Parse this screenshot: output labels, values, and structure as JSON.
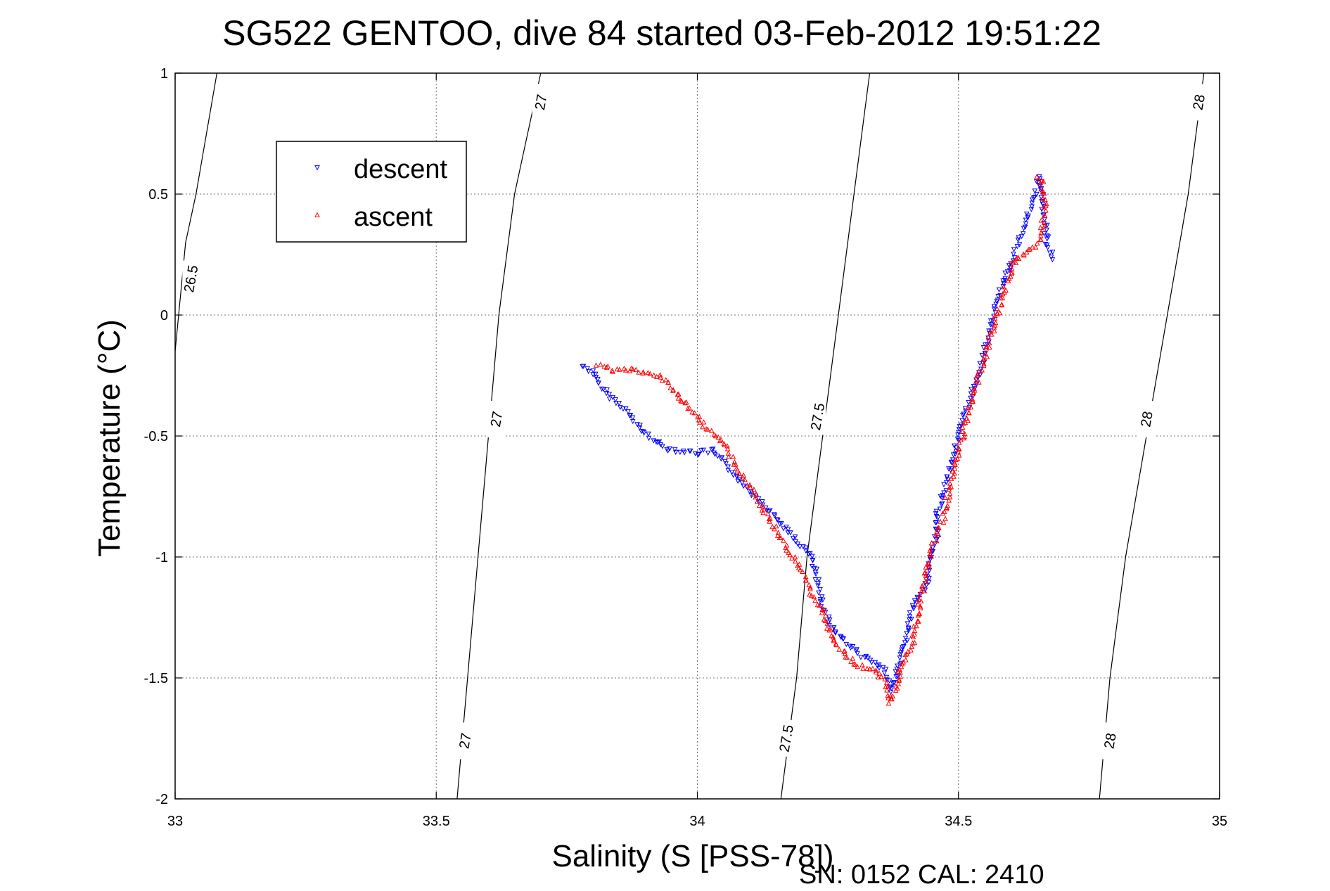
{
  "chart_data": {
    "type": "scatter",
    "title": "SG522 GENTOO, dive 84 started 03-Feb-2012 19:51:22",
    "xlabel": "Salinity (S [PSS-78])",
    "ylabel": "Temperature (°C)",
    "footer": "SN: 0152  CAL: 2410",
    "xlim": [
      33,
      35
    ],
    "ylim": [
      -2,
      1
    ],
    "x_ticks": [
      33,
      33.5,
      34,
      34.5,
      35
    ],
    "x_tick_labels": [
      "33",
      "33.5",
      "34",
      "34.5",
      "35"
    ],
    "y_ticks": [
      -2,
      -1.5,
      -1,
      -0.5,
      0,
      0.5,
      1
    ],
    "y_tick_labels": [
      "-2",
      "-1.5",
      "-1",
      "-0.5",
      "0",
      "0.5",
      "1"
    ],
    "grid": true,
    "legend": {
      "position": "top-left",
      "entries": [
        {
          "label": "descent",
          "color": "#0000ff",
          "marker": "triangle-down"
        },
        {
          "label": "ascent",
          "color": "#ff0000",
          "marker": "triangle-up"
        }
      ]
    },
    "contours": [
      {
        "level": "26.5",
        "points": [
          [
            33.08,
            1.0
          ],
          [
            33.04,
            0.5
          ],
          [
            33.02,
            0.3
          ],
          [
            33.0,
            -0.15
          ]
        ],
        "labels": [
          {
            "x": 33.03,
            "y": 0.15,
            "text": "26.5"
          }
        ]
      },
      {
        "level": "27",
        "points": [
          [
            33.7,
            1.0
          ],
          [
            33.65,
            0.5
          ],
          [
            33.62,
            0.0
          ],
          [
            33.6,
            -0.5
          ],
          [
            33.58,
            -1.0
          ],
          [
            33.56,
            -1.5
          ],
          [
            33.54,
            -2.0
          ]
        ],
        "labels": [
          {
            "x": 33.7,
            "y": 0.88,
            "text": "27"
          },
          {
            "x": 33.615,
            "y": -0.43,
            "text": "27"
          },
          {
            "x": 33.555,
            "y": -1.76,
            "text": "27"
          }
        ]
      },
      {
        "level": "27.5",
        "points": [
          [
            34.33,
            1.0
          ],
          [
            34.3,
            0.5
          ],
          [
            34.27,
            0.0
          ],
          [
            34.24,
            -0.5
          ],
          [
            34.21,
            -1.0
          ],
          [
            34.19,
            -1.5
          ],
          [
            34.16,
            -2.0
          ]
        ],
        "labels": [
          {
            "x": 34.23,
            "y": -0.42,
            "text": "27.5"
          },
          {
            "x": 34.17,
            "y": -1.75,
            "text": "27.5"
          }
        ]
      },
      {
        "level": "28",
        "points": [
          [
            34.97,
            1.0
          ],
          [
            34.94,
            0.5
          ],
          [
            34.9,
            0.0
          ],
          [
            34.86,
            -0.5
          ],
          [
            34.82,
            -1.0
          ],
          [
            34.79,
            -1.5
          ],
          [
            34.77,
            -2.0
          ]
        ],
        "labels": [
          {
            "x": 34.96,
            "y": 0.88,
            "text": "28"
          },
          {
            "x": 34.86,
            "y": -0.43,
            "text": "28"
          },
          {
            "x": 34.79,
            "y": -1.76,
            "text": "28"
          }
        ]
      }
    ],
    "series": [
      {
        "name": "descent",
        "color": "#0000ff",
        "marker": "triangle-down",
        "path": [
          [
            33.78,
            -0.21
          ],
          [
            33.8,
            -0.23
          ],
          [
            33.81,
            -0.28
          ],
          [
            33.83,
            -0.33
          ],
          [
            33.86,
            -0.38
          ],
          [
            33.88,
            -0.44
          ],
          [
            33.9,
            -0.49
          ],
          [
            33.94,
            -0.55
          ],
          [
            34.0,
            -0.57
          ],
          [
            34.03,
            -0.56
          ],
          [
            34.22,
            -1.0
          ],
          [
            34.23,
            -1.1
          ],
          [
            34.24,
            -1.2
          ],
          [
            34.26,
            -1.3
          ],
          [
            34.29,
            -1.36
          ],
          [
            34.31,
            -1.4
          ],
          [
            34.34,
            -1.44
          ],
          [
            34.36,
            -1.47
          ],
          [
            34.37,
            -1.55
          ],
          [
            34.38,
            -1.5
          ],
          [
            34.39,
            -1.43
          ],
          [
            34.4,
            -1.33
          ],
          [
            34.41,
            -1.23
          ],
          [
            34.42,
            -1.18
          ],
          [
            34.44,
            -1.1
          ],
          [
            34.45,
            -0.98
          ],
          [
            34.46,
            -0.9
          ],
          [
            34.46,
            -0.82
          ],
          [
            34.47,
            -0.74
          ],
          [
            34.48,
            -0.66
          ],
          [
            34.49,
            -0.58
          ],
          [
            34.5,
            -0.5
          ],
          [
            34.51,
            -0.43
          ],
          [
            34.52,
            -0.36
          ],
          [
            34.53,
            -0.3
          ],
          [
            34.54,
            -0.23
          ],
          [
            34.55,
            -0.15
          ],
          [
            34.56,
            -0.07
          ],
          [
            34.57,
            0.02
          ],
          [
            34.58,
            0.1
          ],
          [
            34.59,
            0.16
          ],
          [
            34.6,
            0.21
          ],
          [
            34.61,
            0.27
          ],
          [
            34.62,
            0.33
          ],
          [
            34.63,
            0.4
          ],
          [
            34.64,
            0.46
          ],
          [
            34.65,
            0.52
          ],
          [
            34.655,
            0.57
          ],
          [
            34.66,
            0.5
          ],
          [
            34.665,
            0.4
          ],
          [
            34.67,
            0.3
          ],
          [
            34.68,
            0.23
          ]
        ]
      },
      {
        "name": "ascent",
        "color": "#ff0000",
        "marker": "triangle-up",
        "path": [
          [
            33.81,
            -0.21
          ],
          [
            33.84,
            -0.23
          ],
          [
            33.88,
            -0.23
          ],
          [
            33.91,
            -0.24
          ],
          [
            33.94,
            -0.27
          ],
          [
            33.96,
            -0.32
          ],
          [
            34.01,
            -0.45
          ],
          [
            34.05,
            -0.53
          ],
          [
            34.07,
            -0.61
          ],
          [
            34.09,
            -0.68
          ],
          [
            34.11,
            -0.74
          ],
          [
            34.13,
            -0.82
          ],
          [
            34.15,
            -0.89
          ],
          [
            34.17,
            -0.96
          ],
          [
            34.19,
            -1.03
          ],
          [
            34.21,
            -1.1
          ],
          [
            34.22,
            -1.16
          ],
          [
            34.24,
            -1.22
          ],
          [
            34.25,
            -1.3
          ],
          [
            34.27,
            -1.37
          ],
          [
            34.29,
            -1.42
          ],
          [
            34.31,
            -1.45
          ],
          [
            34.34,
            -1.47
          ],
          [
            34.36,
            -1.52
          ],
          [
            34.37,
            -1.6
          ],
          [
            34.38,
            -1.55
          ],
          [
            34.39,
            -1.46
          ],
          [
            34.41,
            -1.37
          ],
          [
            34.42,
            -1.26
          ],
          [
            34.43,
            -1.15
          ],
          [
            34.44,
            -1.05
          ],
          [
            34.45,
            -0.95
          ],
          [
            34.47,
            -0.85
          ],
          [
            34.48,
            -0.75
          ],
          [
            34.49,
            -0.66
          ],
          [
            34.5,
            -0.57
          ],
          [
            34.51,
            -0.48
          ],
          [
            34.52,
            -0.4
          ],
          [
            34.53,
            -0.33
          ],
          [
            34.54,
            -0.25
          ],
          [
            34.55,
            -0.18
          ],
          [
            34.56,
            -0.1
          ],
          [
            34.57,
            -0.03
          ],
          [
            34.58,
            0.05
          ],
          [
            34.59,
            0.12
          ],
          [
            34.6,
            0.18
          ],
          [
            34.61,
            0.23
          ],
          [
            34.63,
            0.26
          ],
          [
            34.65,
            0.28
          ],
          [
            34.66,
            0.35
          ],
          [
            34.665,
            0.45
          ],
          [
            34.66,
            0.55
          ],
          [
            34.65,
            0.57
          ]
        ]
      }
    ]
  }
}
